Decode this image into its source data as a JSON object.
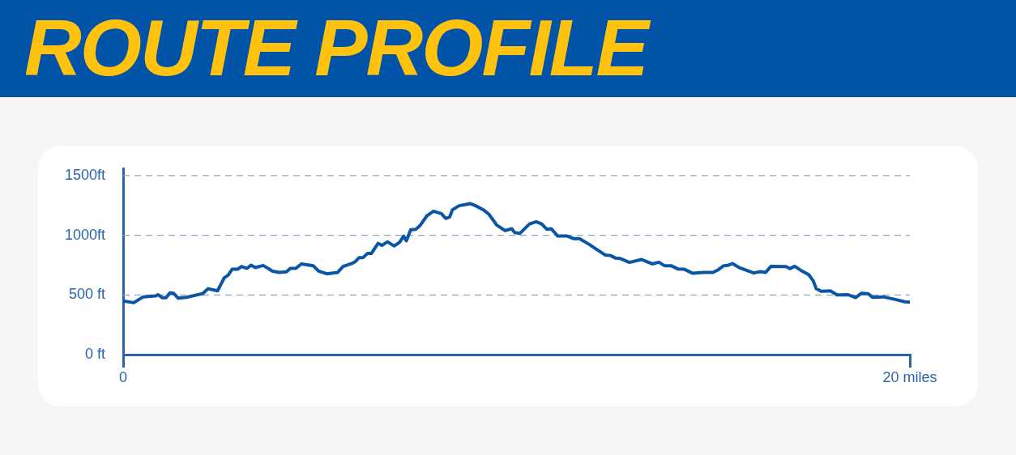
{
  "chart_data": {
    "type": "line",
    "title": "ROUTE PROFILE",
    "x": [
      0,
      0.27,
      0.51,
      0.82,
      0.89,
      0.99,
      1.09,
      1.19,
      1.28,
      1.4,
      1.61,
      2.02,
      2.16,
      2.4,
      2.57,
      2.67,
      2.77,
      2.91,
      3.01,
      3.15,
      3.25,
      3.36,
      3.56,
      3.8,
      3.98,
      4.15,
      4.25,
      4.39,
      4.53,
      4.83,
      4.97,
      5.18,
      5.45,
      5.59,
      5.79,
      5.9,
      6,
      6.1,
      6.21,
      6.31,
      6.48,
      6.58,
      6.72,
      6.89,
      7.03,
      7.13,
      7.2,
      7.31,
      7.44,
      7.54,
      7.72,
      7.89,
      8.09,
      8.2,
      8.3,
      8.37,
      8.54,
      8.82,
      8.95,
      9.16,
      9.3,
      9.5,
      9.71,
      9.88,
      9.95,
      10.09,
      10.33,
      10.5,
      10.64,
      10.77,
      10.88,
      11.05,
      11.29,
      11.46,
      11.6,
      11.84,
      12.04,
      12.25,
      12.39,
      12.52,
      12.63,
      12.87,
      13.18,
      13.31,
      13.45,
      13.62,
      13.76,
      13.93,
      14.1,
      14.27,
      14.48,
      14.75,
      14.99,
      15.13,
      15.27,
      15.37,
      15.49,
      15.68,
      16.03,
      16.2,
      16.33,
      16.47,
      16.85,
      16.95,
      17.07,
      17.23,
      17.43,
      17.54,
      17.62,
      17.74,
      17.98,
      18.15,
      18.43,
      18.62,
      18.77,
      18.94,
      19.05,
      19.32,
      19.63,
      19.87,
      20
    ],
    "values": [
      450,
      435,
      484,
      491,
      502,
      477,
      477,
      518,
      514,
      473,
      480,
      511,
      552,
      534,
      643,
      665,
      715,
      715,
      738,
      722,
      749,
      729,
      747,
      699,
      688,
      693,
      722,
      722,
      760,
      745,
      699,
      677,
      688,
      738,
      760,
      779,
      813,
      813,
      847,
      847,
      932,
      915,
      945,
      910,
      942,
      993,
      953,
      1046,
      1050,
      1078,
      1163,
      1202,
      1181,
      1141,
      1152,
      1213,
      1247,
      1265,
      1249,
      1213,
      1175,
      1084,
      1039,
      1055,
      1023,
      1016,
      1095,
      1113,
      1095,
      1050,
      1055,
      993,
      993,
      971,
      971,
      925,
      881,
      835,
      830,
      808,
      806,
      772,
      797,
      779,
      760,
      774,
      745,
      745,
      718,
      715,
      681,
      688,
      688,
      711,
      745,
      747,
      763,
      726,
      684,
      695,
      688,
      740,
      738,
      720,
      740,
      706,
      670,
      620,
      552,
      530,
      534,
      500,
      502,
      477,
      514,
      511,
      480,
      484,
      462,
      443,
      439
    ],
    "color": "#0b56a4",
    "marker": "none",
    "line_style": "solid",
    "xlim": [
      0,
      20
    ],
    "xticks": [
      0,
      {
        "value": 20,
        "label": "20 miles"
      }
    ],
    "ylim": [
      0,
      1560
    ],
    "yticks": [
      {
        "value": 0,
        "label": "0 ft"
      },
      {
        "value": 500,
        "label": "500 ft"
      },
      {
        "value": 1000,
        "label": "1000ft"
      },
      {
        "value": 1500,
        "label": "1500ft"
      }
    ],
    "grid": "y"
  }
}
